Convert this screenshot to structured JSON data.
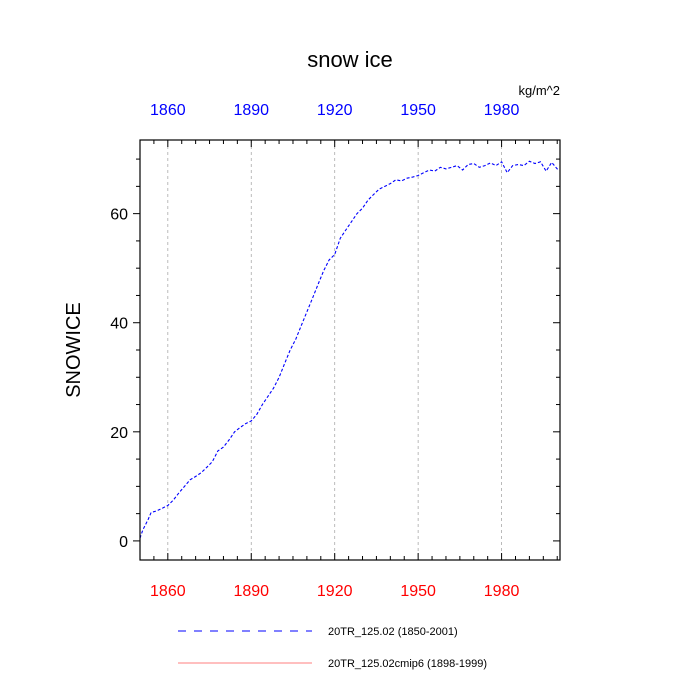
{
  "chart_data": {
    "type": "line",
    "title": "snow ice",
    "units_label": "kg/m^2",
    "ylabel": "SNOWICE",
    "xlabel": "",
    "xlim": [
      1850,
      2001
    ],
    "ylim": [
      -3.5,
      73.5
    ],
    "x_ticks": [
      1860,
      1890,
      1920,
      1950,
      1980
    ],
    "x_tick_labels": [
      "1860",
      "1890",
      "1920",
      "1950",
      "1980"
    ],
    "y_ticks": [
      0,
      20,
      40,
      60
    ],
    "y_tick_labels": [
      "0",
      "20",
      "40",
      "60"
    ],
    "grid": "vertical dashed at major x ticks",
    "colors": {
      "bottom_axis_labels": "#ff0000",
      "top_axis_labels": "#0000ff",
      "series1": "#0000ff",
      "series2": "#ff0000",
      "grid": "#aaaaaa"
    },
    "legend": {
      "placement": "bottom",
      "entries": [
        {
          "label": "20TR_125.02 (1850-2001)",
          "color": "#0000ff",
          "style": "dashed"
        },
        {
          "label": "20TR_125.02cmip6 (1898-1999)",
          "color": "#ff0000",
          "style": "solid"
        }
      ]
    },
    "series": [
      {
        "name": "20TR_125.02 (1850-2001)",
        "color": "#0000ff",
        "x": [
          1850,
          1851,
          1852,
          1853,
          1854,
          1856,
          1858,
          1860,
          1862,
          1864,
          1866,
          1868,
          1870,
          1872,
          1874,
          1876,
          1878,
          1880,
          1882,
          1884,
          1886,
          1888,
          1890,
          1892,
          1894,
          1896,
          1898,
          1900,
          1902,
          1904,
          1906,
          1908,
          1910,
          1912,
          1914,
          1916,
          1918,
          1920,
          1922,
          1924,
          1926,
          1928,
          1930,
          1932,
          1934,
          1936,
          1938,
          1940,
          1942,
          1944,
          1946,
          1948,
          1950,
          1952,
          1954,
          1956,
          1958,
          1960,
          1962,
          1964,
          1966,
          1968,
          1970,
          1972,
          1974,
          1976,
          1978,
          1980,
          1982,
          1984,
          1986,
          1988,
          1990,
          1992,
          1994,
          1996,
          1998,
          2000,
          2001
        ],
        "values": [
          0.5,
          2,
          3,
          4,
          5.2,
          5.5,
          6,
          6.5,
          7.5,
          8.8,
          10,
          11.2,
          11.8,
          12.5,
          13.5,
          14.5,
          16.5,
          17.2,
          18.5,
          20,
          20.8,
          21.5,
          22,
          23.2,
          25,
          26.5,
          28,
          30,
          32.5,
          35,
          37,
          39.5,
          42,
          44.5,
          47,
          49.5,
          51.5,
          52.5,
          55.5,
          57,
          58.5,
          60,
          61,
          62.5,
          63.5,
          64.5,
          65,
          65.5,
          66.2,
          66,
          66.5,
          66.7,
          67,
          67.5,
          68,
          67.8,
          68.5,
          68.2,
          68.5,
          68.8,
          68,
          69,
          69.2,
          68.5,
          68.8,
          69.3,
          68.8,
          69.5,
          67.5,
          68.8,
          69,
          68.8,
          69.6,
          69.2,
          69.5,
          67.8,
          69.4,
          68.2,
          68
        ]
      }
    ]
  }
}
